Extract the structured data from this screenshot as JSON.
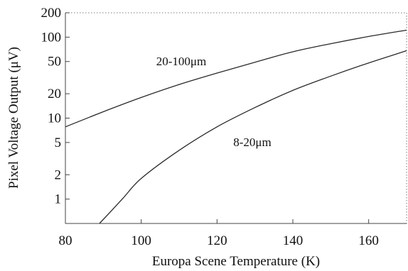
{
  "chart_data": {
    "type": "line",
    "xlabel": "Europa Scene Temperature (K)",
    "ylabel": "Pixel Voltage Output (μV)",
    "xlim": [
      80,
      170
    ],
    "ylim": [
      0.5,
      200
    ],
    "yscale": "log",
    "xticks": [
      80,
      100,
      120,
      140,
      160
    ],
    "xtick_labels": [
      "80",
      "100",
      "120",
      "140",
      "160"
    ],
    "yticks": [
      1,
      2,
      5,
      10,
      20,
      50,
      100,
      200
    ],
    "ytick_labels": [
      "1",
      "2",
      "5",
      "10",
      "20",
      "50",
      "100",
      "200"
    ],
    "grid": false,
    "series": [
      {
        "name": "20-100μm",
        "x": [
          80,
          90,
          100,
          110,
          120,
          130,
          140,
          150,
          160,
          170
        ],
        "values": [
          7.8,
          12,
          18,
          26,
          36,
          49,
          66,
          83,
          102,
          122
        ]
      },
      {
        "name": "8-20μm",
        "x": [
          89,
          95,
          100,
          110,
          120,
          130,
          140,
          150,
          160,
          170
        ],
        "values": [
          0.5,
          1.0,
          1.8,
          4.0,
          7.8,
          13.5,
          22,
          33,
          48,
          68
        ]
      }
    ],
    "annotations": [
      {
        "text": "20-100μm",
        "series": 0
      },
      {
        "text": "8-20μm",
        "series": 1
      }
    ]
  }
}
